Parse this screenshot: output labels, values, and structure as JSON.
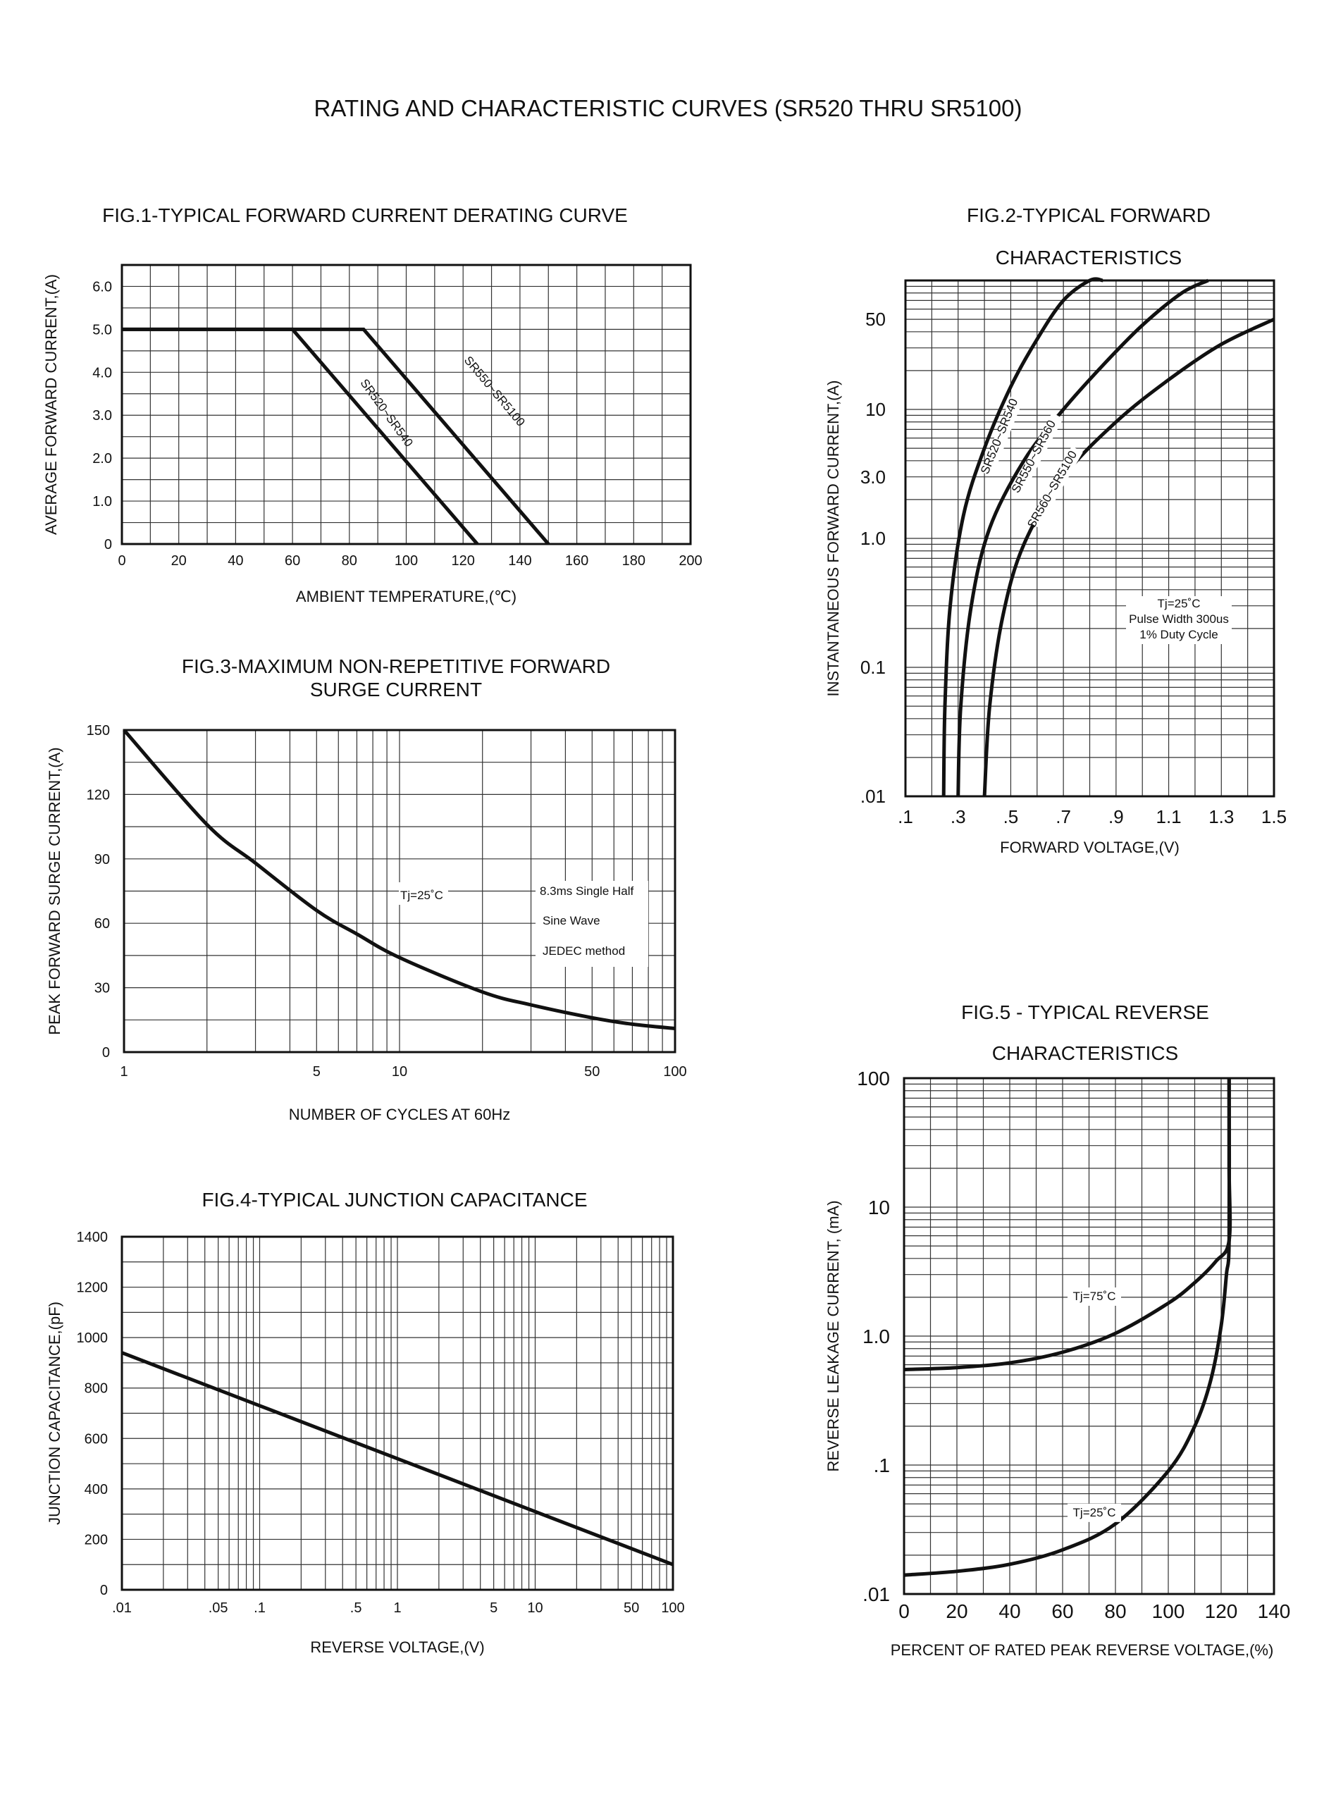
{
  "page_title": "RATING AND CHARACTERISTIC CURVES (SR520 THRU SR5100)",
  "chart_data": [
    {
      "id": "fig1",
      "type": "line",
      "title": "FIG.1-TYPICAL FORWARD CURRENT DERATING CURVE",
      "xlabel": "AMBIENT TEMPERATURE,(℃)",
      "ylabel": "AVERAGE FORWARD CURRENT,(A)",
      "xlim": [
        0,
        200
      ],
      "ylim": [
        0,
        6.5
      ],
      "x_ticks": [
        0,
        20,
        40,
        60,
        80,
        100,
        120,
        140,
        160,
        180,
        200
      ],
      "x_tick_labels": [
        "0",
        "20",
        "40",
        "60",
        "80",
        "100",
        "120",
        "140",
        "160",
        "180",
        "200"
      ],
      "y_ticks": [
        0,
        1.0,
        2.0,
        3.0,
        4.0,
        5.0,
        6.0
      ],
      "y_tick_labels": [
        "0",
        "1.0",
        "2.0",
        "3.0",
        "4.0",
        "5.0",
        "6.0"
      ],
      "grid": true,
      "series": [
        {
          "name": "SR520~SR540",
          "x": [
            0,
            60,
            125
          ],
          "y": [
            5.0,
            5.0,
            0
          ]
        },
        {
          "name": "SR550~SR5100",
          "x": [
            0,
            85,
            150
          ],
          "y": [
            5.0,
            5.0,
            0
          ]
        }
      ]
    },
    {
      "id": "fig2",
      "type": "line",
      "title_lines": [
        "FIG.2-TYPICAL FORWARD",
        "CHARACTERISTICS"
      ],
      "xlabel": "FORWARD VOLTAGE,(V)",
      "ylabel": "INSTANTANEOUS FORWARD CURRENT,(A)",
      "xlim": [
        0.1,
        1.5
      ],
      "ylim": [
        0.01,
        100
      ],
      "yscale": "log",
      "x_ticks": [
        0.1,
        0.3,
        0.5,
        0.7,
        0.9,
        1.1,
        1.3,
        1.5
      ],
      "x_tick_labels": [
        ".1",
        ".3",
        ".5",
        ".7",
        ".9",
        "1.1",
        "1.3",
        "1.5"
      ],
      "y_ticks": [
        0.01,
        0.1,
        1.0,
        3.0,
        10,
        50
      ],
      "y_tick_labels": [
        ".01",
        "0.1",
        "1.0",
        "3.0",
        "10",
        "50"
      ],
      "grid": true,
      "annotation_lines": [
        "Tj=25˚C",
        "Pulse Width 300us",
        "1% Duty Cycle"
      ],
      "series": [
        {
          "name": "SR520~SR540",
          "x": [
            0.245,
            0.25,
            0.27,
            0.32,
            0.4,
            0.5,
            0.6,
            0.7,
            0.8,
            0.85
          ],
          "y": [
            0.01,
            0.05,
            0.3,
            1.5,
            5,
            15,
            35,
            70,
            100,
            100
          ]
        },
        {
          "name": "SR550~SR560",
          "x": [
            0.3,
            0.31,
            0.35,
            0.42,
            0.55,
            0.7,
            0.85,
            1.0,
            1.15,
            1.25
          ],
          "y": [
            0.01,
            0.05,
            0.3,
            1.2,
            4,
            10,
            22,
            45,
            80,
            100
          ]
        },
        {
          "name": "SR560~SR5100",
          "x": [
            0.4,
            0.42,
            0.47,
            0.55,
            0.7,
            0.9,
            1.1,
            1.3,
            1.5
          ],
          "y": [
            0.01,
            0.05,
            0.25,
            0.9,
            3,
            8,
            17,
            32,
            50
          ]
        }
      ]
    },
    {
      "id": "fig3",
      "type": "line",
      "title_lines": [
        "FIG.3-MAXIMUM NON-REPETITIVE FORWARD",
        "SURGE CURRENT"
      ],
      "xlabel": "NUMBER OF CYCLES AT 60Hz",
      "ylabel": "PEAK FORWARD SURGE CURRENT,(A)",
      "xlim": [
        1,
        100
      ],
      "xscale": "log",
      "ylim": [
        0,
        150
      ],
      "x_ticks": [
        1,
        5,
        10,
        50,
        100
      ],
      "x_tick_labels": [
        "1",
        "5",
        "10",
        "50",
        "100"
      ],
      "y_ticks": [
        0,
        30,
        60,
        90,
        120,
        150
      ],
      "y_tick_labels": [
        "0",
        "30",
        "60",
        "90",
        "120",
        "150"
      ],
      "grid": true,
      "annotations": [
        "Tj=25˚C",
        "8.3ms Single Half",
        "Sine Wave",
        "JEDEC method"
      ],
      "series": [
        {
          "name": "IFSM",
          "x": [
            1,
            2,
            3,
            5,
            7,
            10,
            20,
            30,
            50,
            70,
            100
          ],
          "y": [
            150,
            106,
            88,
            66,
            55,
            44,
            28,
            22,
            16,
            13,
            11
          ]
        }
      ]
    },
    {
      "id": "fig4",
      "type": "line",
      "title": "FIG.4-TYPICAL JUNCTION CAPACITANCE",
      "xlabel": "REVERSE VOLTAGE,(V)",
      "ylabel": "JUNCTION CAPACITANCE,(pF)",
      "xlim": [
        0.01,
        100
      ],
      "xscale": "log",
      "ylim": [
        0,
        1400
      ],
      "x_ticks": [
        0.01,
        0.05,
        0.1,
        0.5,
        1,
        5,
        10,
        50,
        100
      ],
      "x_tick_labels": [
        ".01",
        ".05",
        ".1",
        ".5",
        "1",
        "5",
        "10",
        "50",
        "100"
      ],
      "y_ticks": [
        0,
        200,
        400,
        600,
        800,
        1000,
        1200,
        1400
      ],
      "y_tick_labels": [
        "0",
        "200",
        "400",
        "600",
        "800",
        "1000",
        "1200",
        "1400"
      ],
      "grid": true,
      "series": [
        {
          "name": "Cj",
          "x": [
            0.01,
            0.1,
            1,
            10,
            100
          ],
          "y": [
            940,
            730,
            520,
            310,
            100
          ]
        }
      ]
    },
    {
      "id": "fig5",
      "type": "line",
      "title_lines": [
        "FIG.5 - TYPICAL REVERSE",
        "CHARACTERISTICS"
      ],
      "xlabel": "PERCENT OF RATED PEAK REVERSE VOLTAGE,(%)",
      "ylabel": "REVERSE LEAKAGE CURRENT, (mA)",
      "xlim": [
        0,
        140
      ],
      "ylim": [
        0.01,
        100
      ],
      "yscale": "log",
      "x_ticks": [
        0,
        20,
        40,
        60,
        80,
        100,
        120,
        140
      ],
      "x_tick_labels": [
        "0",
        "20",
        "40",
        "60",
        "80",
        "100",
        "120",
        "140"
      ],
      "y_ticks": [
        0.01,
        0.1,
        1.0,
        10,
        100
      ],
      "y_tick_labels": [
        ".01",
        ".1",
        "1.0",
        "10",
        "100"
      ],
      "grid": true,
      "series": [
        {
          "name": "Tj=75˚C",
          "x": [
            0,
            20,
            40,
            60,
            80,
            100,
            110,
            118,
            123,
            123,
            123
          ],
          "y": [
            0.55,
            0.57,
            0.62,
            0.75,
            1.05,
            1.8,
            2.6,
            3.8,
            5.5,
            20,
            100
          ]
        },
        {
          "name": "Tj=25˚C",
          "x": [
            0,
            20,
            40,
            60,
            80,
            100,
            110,
            116,
            120,
            122,
            123,
            123
          ],
          "y": [
            0.014,
            0.015,
            0.017,
            0.022,
            0.035,
            0.09,
            0.2,
            0.45,
            1.2,
            3,
            5.5,
            100
          ]
        }
      ]
    }
  ]
}
